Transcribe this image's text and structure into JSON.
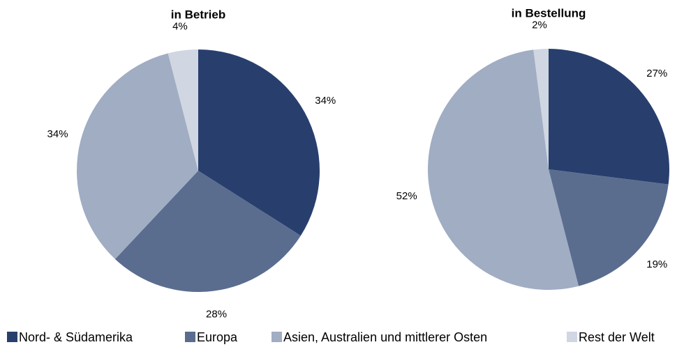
{
  "chart_data": [
    {
      "type": "pie",
      "title": "in Betrieb",
      "categories": [
        "Nord- & Südamerika",
        "Europa",
        "Asien, Australien und mittlerer Osten",
        "Rest der Welt"
      ],
      "values": [
        34,
        28,
        34,
        4
      ],
      "value_labels": [
        "34%",
        "28%",
        "34%",
        "4%"
      ],
      "colors": [
        "#283f6e",
        "#5a6d8f",
        "#a0adc3",
        "#d0d6e2"
      ]
    },
    {
      "type": "pie",
      "title": "in Bestellung",
      "categories": [
        "Nord- & Südamerika",
        "Europa",
        "Asien, Australien und mittlerer Osten",
        "Rest der Welt"
      ],
      "values": [
        27,
        19,
        52,
        2
      ],
      "value_labels": [
        "27%",
        "19%",
        "52%",
        "2%"
      ],
      "colors": [
        "#283f6e",
        "#5a6d8f",
        "#a0adc3",
        "#d0d6e2"
      ]
    }
  ]
}
